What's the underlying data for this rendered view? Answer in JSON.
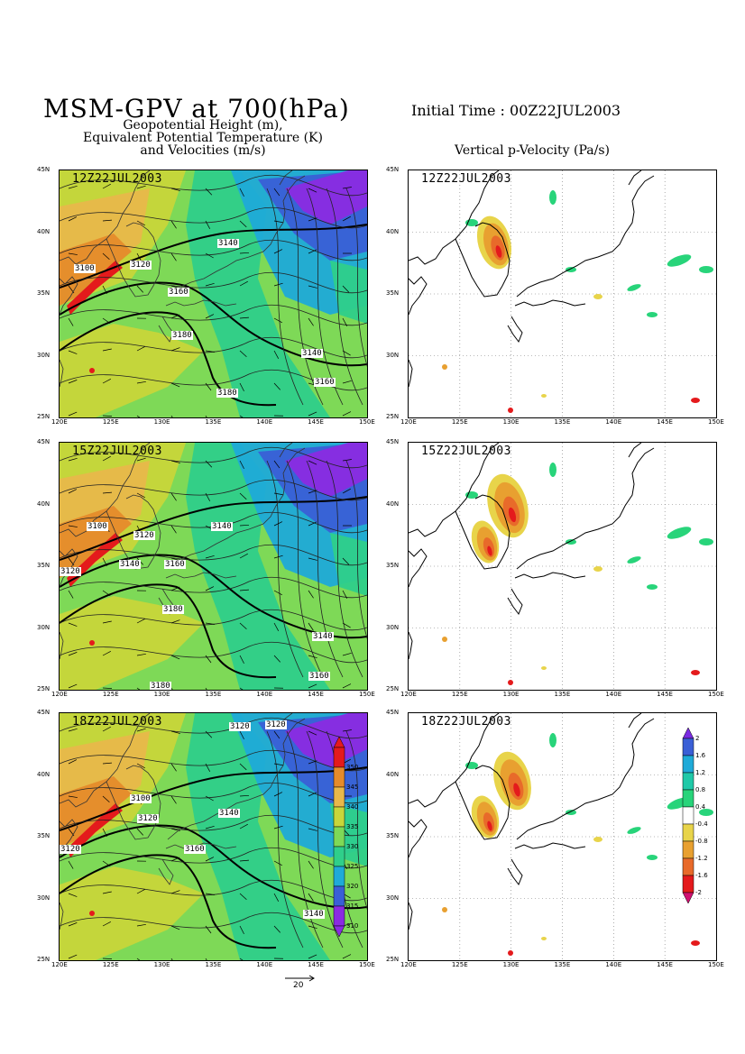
{
  "header": {
    "main_title": "MSM-GPV at 700(hPa)",
    "initial_time": "Initial Time : 00Z22JUL2003",
    "left_subtitle_1": "Geopotential Height (m),",
    "left_subtitle_2": "Equivalent Potential Temperature (K)",
    "left_subtitle_3": "and Velocities (m/s)",
    "right_subtitle": "Vertical p-Velocity (Pa/s)"
  },
  "axes": {
    "lon_ticks": [
      "120E",
      "125E",
      "130E",
      "135E",
      "140E",
      "145E",
      "150E"
    ],
    "lat_ticks": [
      "45N",
      "40N",
      "35N",
      "30N",
      "25N"
    ]
  },
  "panels": {
    "row1": {
      "time": "12Z22JUL2003",
      "left_labels": [
        "3100",
        "3120",
        "3140",
        "3160",
        "3180",
        "3140",
        "3160",
        "3180"
      ]
    },
    "row2": {
      "time": "15Z22JUL2003",
      "left_labels": [
        "3100",
        "3120",
        "3120",
        "3140",
        "3140",
        "3160",
        "3180",
        "3140",
        "3160",
        "3180"
      ]
    },
    "row3": {
      "time": "18Z22JUL2003",
      "left_labels": [
        "3120",
        "3120",
        "3100",
        "3120",
        "3140",
        "3120",
        "3160",
        "3140"
      ]
    }
  },
  "ept_colorbar": {
    "labels": [
      "350",
      "345",
      "340",
      "335",
      "330",
      "325",
      "320",
      "315",
      "310"
    ],
    "colors": [
      "#e41a1c",
      "#e58b2b",
      "#e8b84a",
      "#c8d63a",
      "#7ed957",
      "#2fcf8a",
      "#1faad8",
      "#3a5fd6",
      "#8a2be2"
    ]
  },
  "omega_colorbar": {
    "labels": [
      "2",
      "1.6",
      "1.2",
      "0.8",
      "0.4",
      "-0.4",
      "-0.8",
      "-1.2",
      "-1.6",
      "-2"
    ],
    "colors": [
      "#7a2be2",
      "#3a5fd6",
      "#1faad8",
      "#1fc9a8",
      "#28d47a",
      "#ffffff",
      "#e8d44a",
      "#e8a030",
      "#e86a2a",
      "#e41a1c",
      "#d01070"
    ]
  },
  "vector_reference": {
    "label": "20"
  }
}
